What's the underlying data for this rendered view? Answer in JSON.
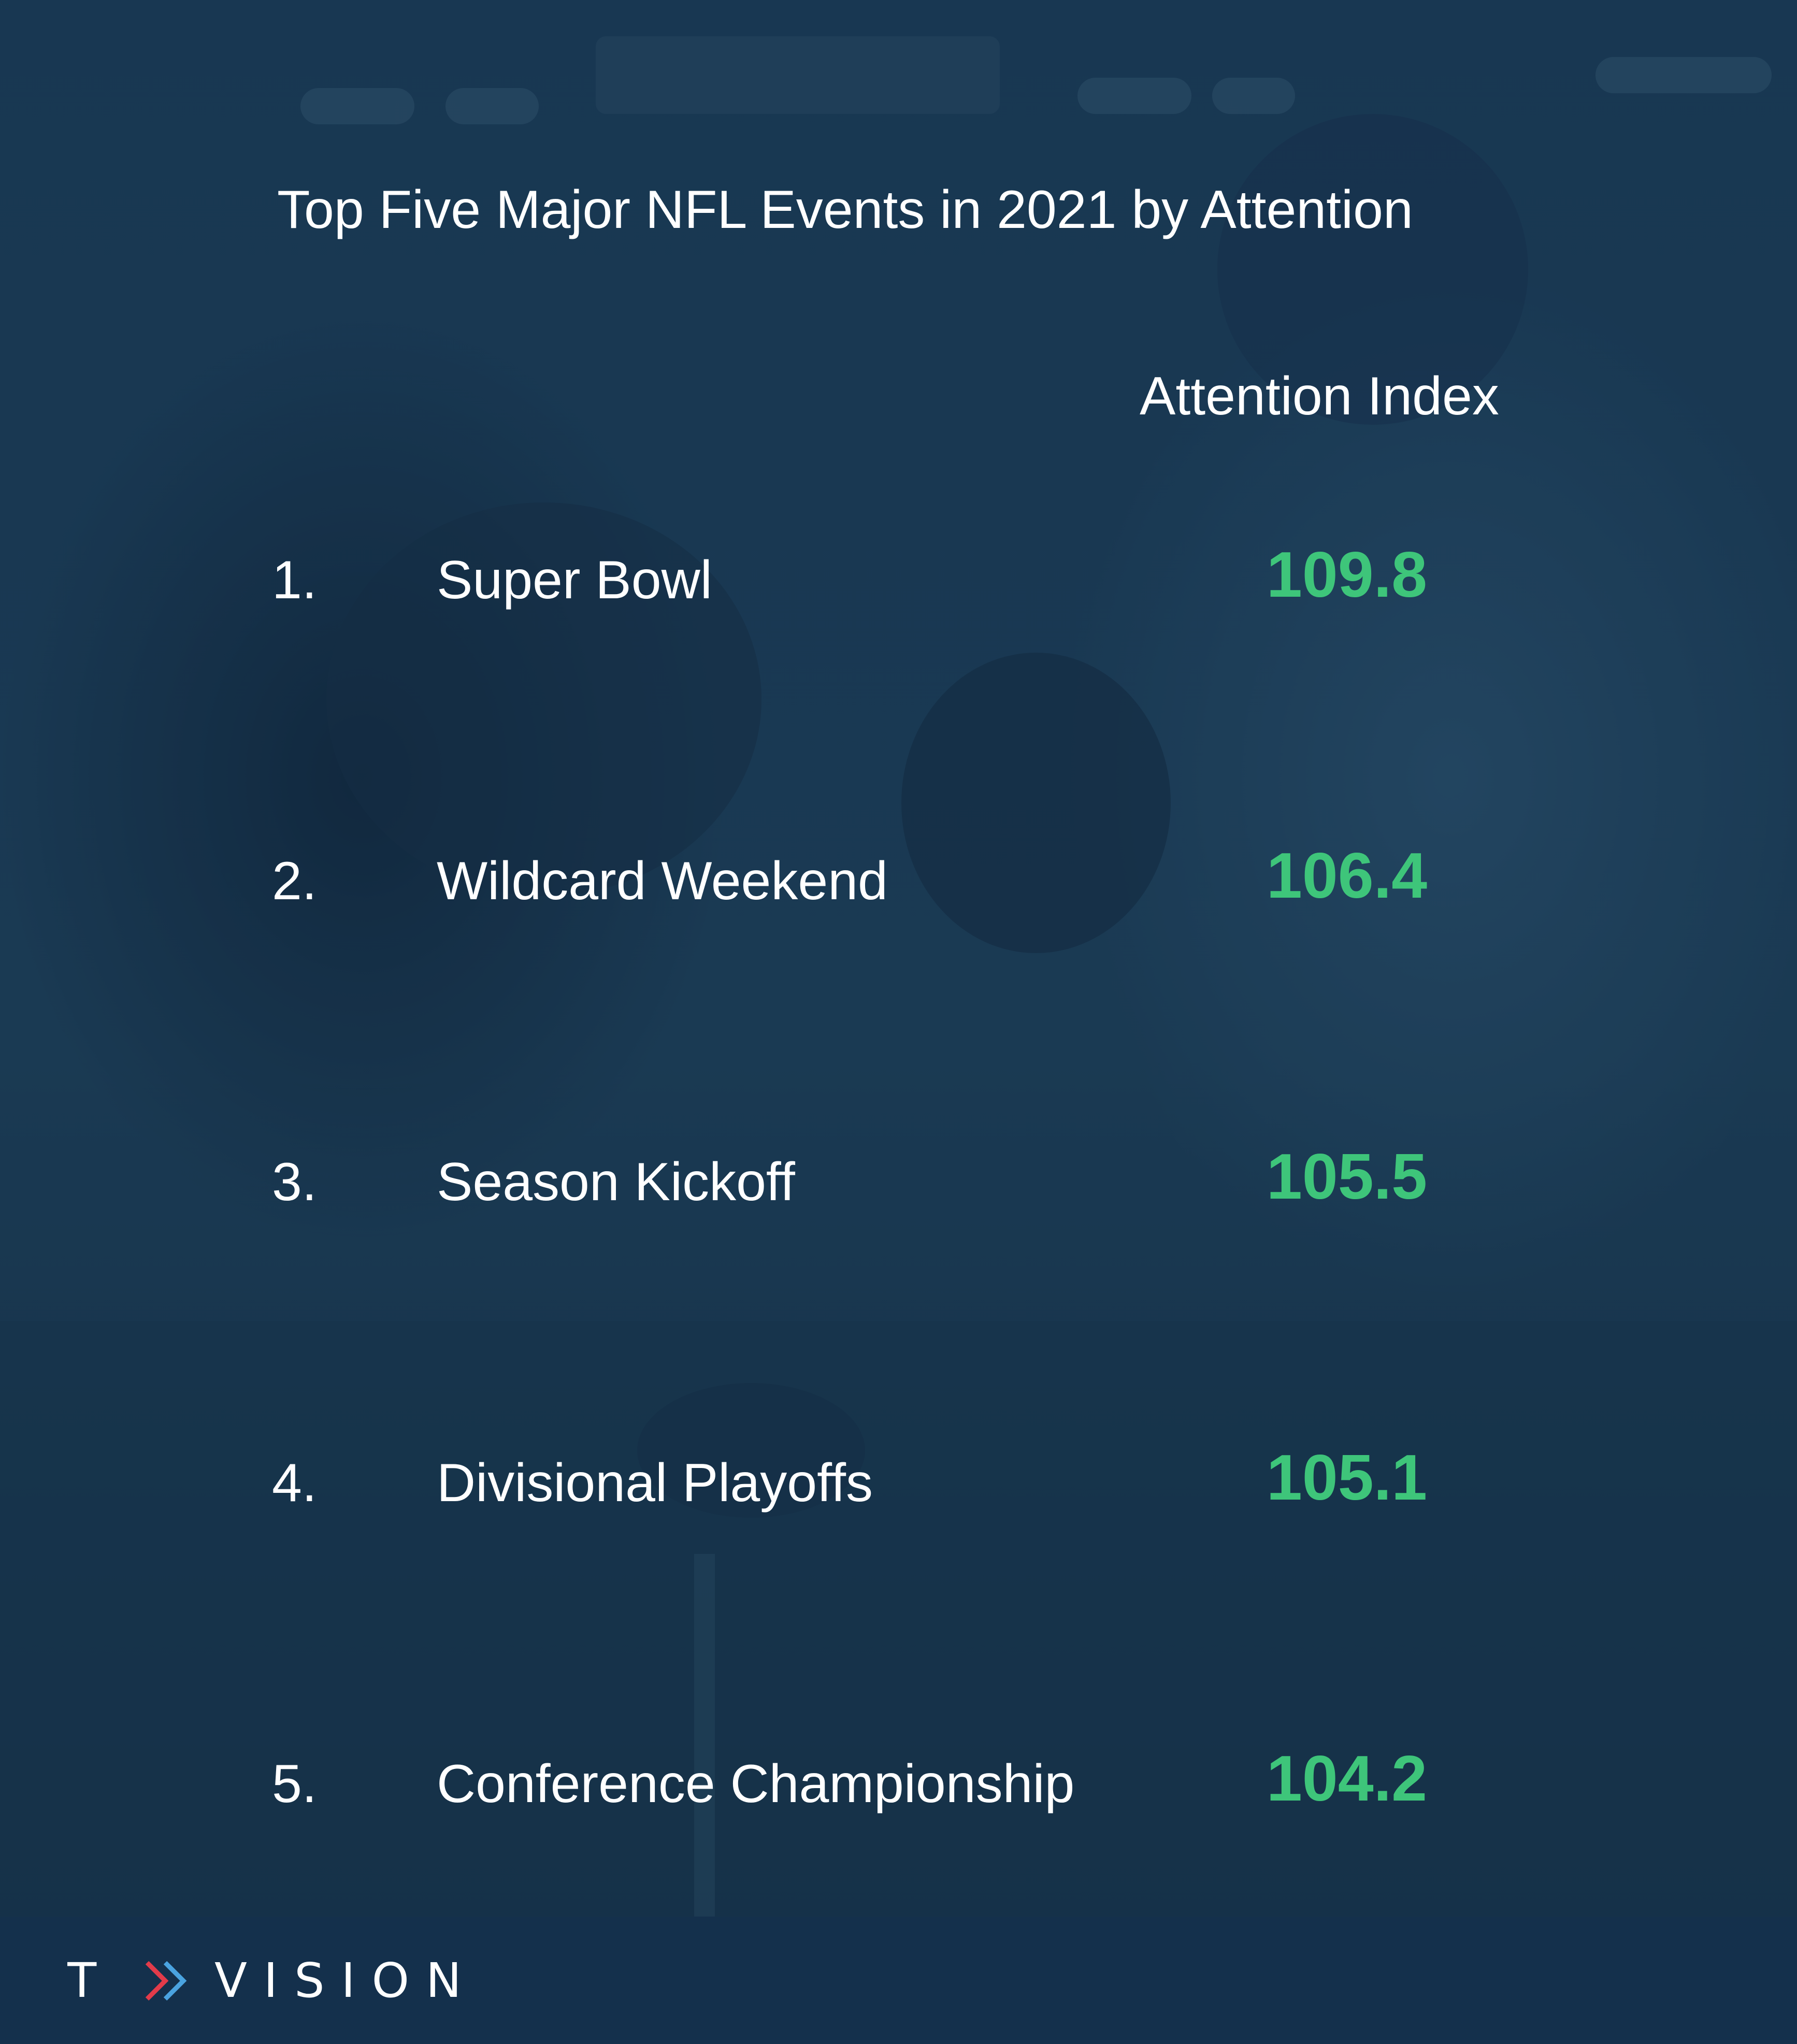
{
  "brand": {
    "name": "VISION",
    "mark_letter": "T",
    "colors": {
      "background": "#14304c",
      "accent_green": "#3ec57a",
      "text": "#ffffff",
      "chevron_red": "#e23b4a",
      "chevron_blue": "#4aa3e0"
    }
  },
  "chart_data": {
    "type": "table",
    "title": "Top Five Major NFL Events in 2021 by Attention",
    "column_header": "Attention Index",
    "rows": [
      {
        "rank": "1.",
        "event": "Super Bowl",
        "value": 109.8
      },
      {
        "rank": "2.",
        "event": "Wildcard Weekend",
        "value": 106.4
      },
      {
        "rank": "3.",
        "event": "Season Kickoff",
        "value": 105.5
      },
      {
        "rank": "4.",
        "event": "Divisional Playoffs",
        "value": 105.1
      },
      {
        "rank": "5.",
        "event": "Conference Championship",
        "value": 104.2
      }
    ]
  }
}
